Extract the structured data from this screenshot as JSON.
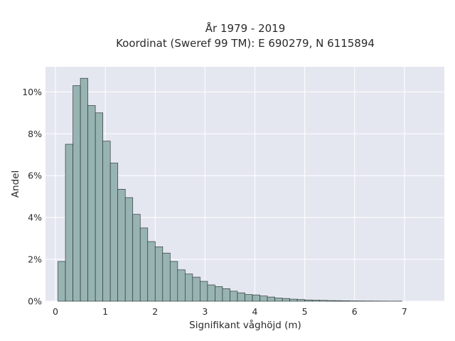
{
  "chart_data": {
    "type": "bar",
    "title_lines": [
      "År 1979 - 2019",
      "Koordinat (Sweref 99 TM): E 690279, N 6115894"
    ],
    "xlabel": "Signifikant våghöjd (m)",
    "ylabel": "Andel",
    "xlim": [
      -0.2,
      7.8
    ],
    "ylim": [
      0,
      11.2
    ],
    "x_ticks": [
      0,
      1,
      2,
      3,
      4,
      5,
      6,
      7
    ],
    "y_ticks": [
      0,
      2,
      4,
      6,
      8,
      10
    ],
    "y_tick_suffix": "%",
    "grid": true,
    "legend": "none",
    "bin_width": 0.15,
    "bin_edges_start": 0.05,
    "values": [
      1.9,
      7.5,
      10.3,
      10.65,
      9.35,
      9.0,
      7.65,
      6.6,
      5.35,
      4.95,
      4.15,
      3.5,
      2.85,
      2.6,
      2.3,
      1.9,
      1.5,
      1.3,
      1.15,
      0.95,
      0.78,
      0.7,
      0.6,
      0.48,
      0.4,
      0.32,
      0.3,
      0.25,
      0.2,
      0.15,
      0.13,
      0.1,
      0.08,
      0.06,
      0.05,
      0.04,
      0.03,
      0.025,
      0.02,
      0.015,
      0.012,
      0.01,
      0.008,
      0.006,
      0.004,
      0.004
    ],
    "colors": {
      "bar_fill": "#98b4b2",
      "bar_stroke": "#2f3b3a",
      "plot_bg": "#e5e7f0",
      "grid": "#ffffff"
    }
  }
}
